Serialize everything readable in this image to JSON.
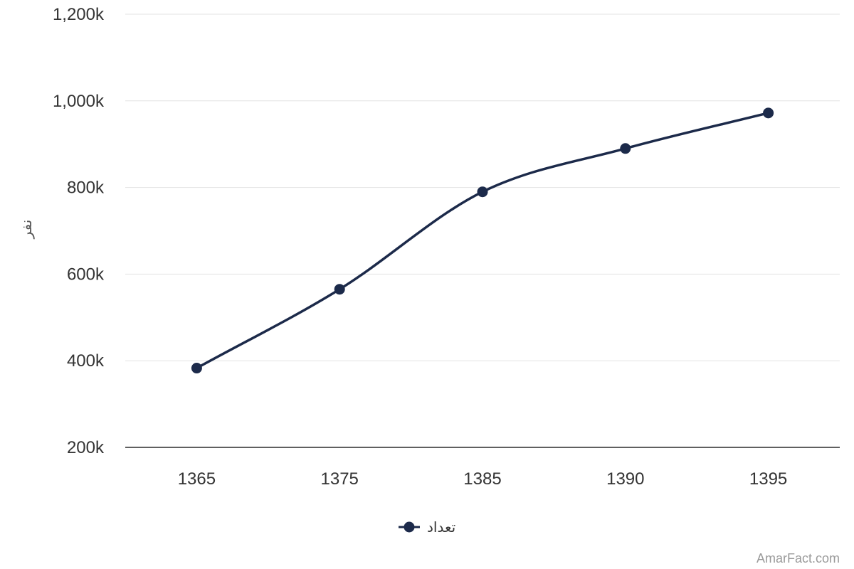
{
  "chart_data": {
    "type": "line",
    "categories": [
      "1365",
      "1375",
      "1385",
      "1390",
      "1395"
    ],
    "series": [
      {
        "name": "تعداد",
        "values": [
          383000,
          565000,
          790000,
          890000,
          972000
        ]
      }
    ],
    "ylabel": "نفر",
    "xlabel": "",
    "ylim": [
      200000,
      1200000
    ],
    "y_ticks": [
      200000,
      400000,
      600000,
      800000,
      1000000,
      1200000
    ],
    "y_tick_labels": [
      "200k",
      "400k",
      "600k",
      "800k",
      "1,000k",
      "1,200k"
    ],
    "grid": true,
    "legend_position": "bottom",
    "line_color": "#1c2a4a",
    "smooth": true
  },
  "credit": {
    "text": "AmarFact.com"
  }
}
